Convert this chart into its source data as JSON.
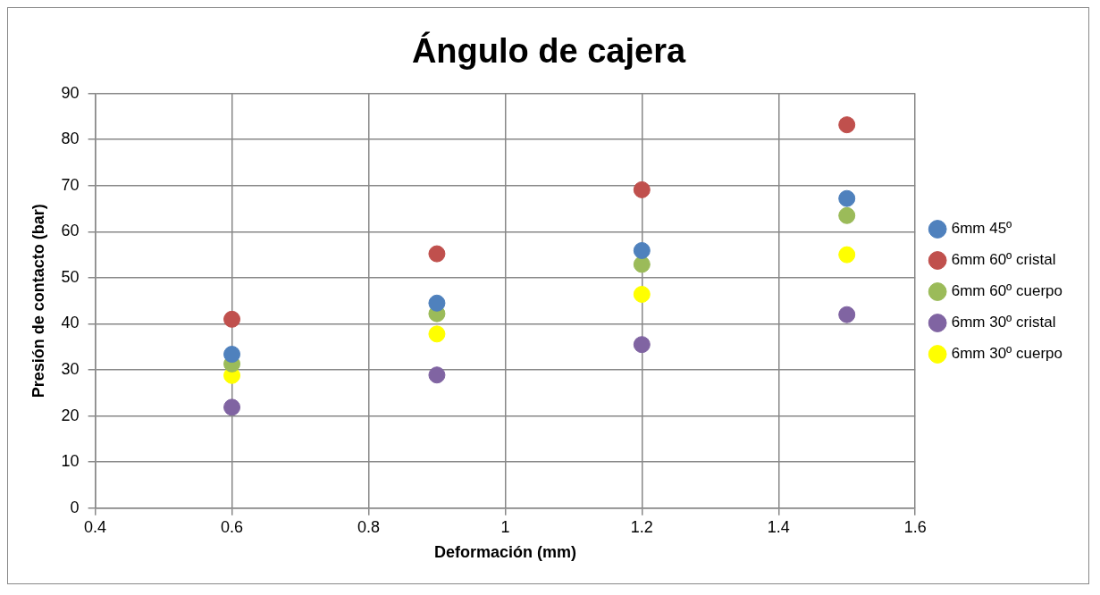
{
  "chart_data": {
    "type": "scatter",
    "title": "Ángulo de cajera",
    "xlabel": "Deformación (mm)",
    "ylabel": "Presión de contacto (bar)",
    "xlim": [
      0.4,
      1.6
    ],
    "xticks": [
      0.4,
      0.6,
      0.8,
      1,
      1.2,
      1.4,
      1.6
    ],
    "ylim": [
      0,
      90
    ],
    "yticks": [
      0,
      10,
      20,
      30,
      40,
      50,
      60,
      70,
      80,
      90
    ],
    "grid": true,
    "legend": "right",
    "marker": "circle",
    "x": [
      0.6,
      0.9,
      1.2,
      1.5
    ],
    "series": [
      {
        "name": "6mm 45º",
        "color": "#4f81bd",
        "values": [
          33.4,
          44.5,
          55.9,
          67.2
        ]
      },
      {
        "name": "6mm 60º cristal",
        "color": "#c0504d",
        "values": [
          41.0,
          55.2,
          69.1,
          83.2
        ]
      },
      {
        "name": "6mm 60º cuerpo",
        "color": "#9bbb59",
        "values": [
          31.3,
          42.2,
          52.9,
          63.5
        ]
      },
      {
        "name": "6mm 30º cristal",
        "color": "#8064a2",
        "values": [
          21.9,
          28.9,
          35.5,
          42.0
        ]
      },
      {
        "name": "6mm 30º cuerpo",
        "color": "#ffff00",
        "values": [
          28.8,
          37.8,
          46.4,
          55.0
        ]
      }
    ]
  }
}
